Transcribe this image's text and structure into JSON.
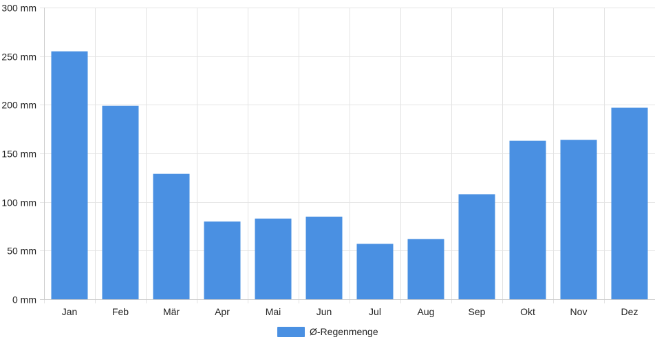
{
  "chart_data": {
    "type": "bar",
    "categories": [
      "Jan",
      "Feb",
      "Mär",
      "Apr",
      "Mai",
      "Jun",
      "Jul",
      "Aug",
      "Sep",
      "Okt",
      "Nov",
      "Dez"
    ],
    "series": [
      {
        "name": "Ø-Regenmenge",
        "values": [
          255,
          199,
          129,
          80,
          83,
          85,
          57,
          62,
          108,
          163,
          164,
          197
        ],
        "color": "#4a90e2"
      }
    ],
    "title": "",
    "xlabel": "",
    "ylabel": "",
    "ylim": [
      0,
      300
    ],
    "yticks": [
      0,
      50,
      100,
      150,
      200,
      250,
      300
    ],
    "ytick_suffix": " mm",
    "grid": true,
    "legend_position": "bottom-center"
  }
}
